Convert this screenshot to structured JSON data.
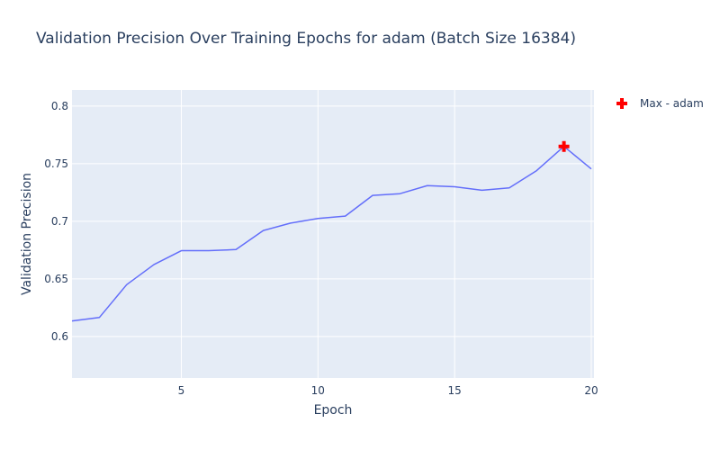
{
  "chart_data": {
    "type": "line",
    "title": "Validation Precision Over Training Epochs for adam (Batch Size 16384)",
    "xlabel": "Epoch",
    "ylabel": "Validation Precision",
    "xlim": [
      1,
      20.1
    ],
    "ylim": [
      0.564,
      0.814
    ],
    "xticks": [
      5,
      10,
      15,
      20
    ],
    "yticks": [
      0.6,
      0.65,
      0.7,
      0.75,
      0.8
    ],
    "grid": true,
    "legend_position": "top-right",
    "series": [
      {
        "name": "",
        "color": "#636efa",
        "x": [
          1,
          2,
          3,
          4,
          5,
          6,
          7,
          8,
          9,
          10,
          11,
          12,
          13,
          14,
          15,
          16,
          17,
          18,
          19,
          20
        ],
        "y": [
          0.6135,
          0.6165,
          0.645,
          0.6625,
          0.6745,
          0.6745,
          0.6755,
          0.692,
          0.6985,
          0.7025,
          0.7045,
          0.7225,
          0.724,
          0.731,
          0.73,
          0.727,
          0.729,
          0.744,
          0.765,
          0.7455
        ]
      },
      {
        "name": "Max - adam",
        "type": "scatter",
        "marker": "cross",
        "color": "#ff0000",
        "x": [
          19
        ],
        "y": [
          0.765
        ]
      }
    ]
  },
  "colors": {
    "plot_bg": "#e5ecf6",
    "grid": "#ffffff",
    "text": "#2a3f5f"
  }
}
